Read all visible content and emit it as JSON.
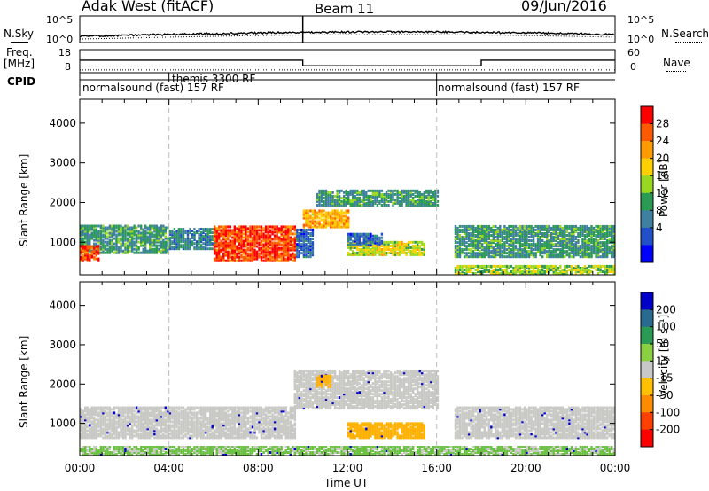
{
  "header": {
    "title": "Adak West (fitACF)",
    "beam": "Beam 11",
    "date": "09/Jun/2016"
  },
  "side_labels": {
    "nsky": "N.Sky",
    "nsearch": "N.Search",
    "freq_line1": "Freq.",
    "freq_line2": "[MHz]",
    "nave": "Nave",
    "cpid": "CPID"
  },
  "noise_panel": {
    "left_ticks": [
      "10^5",
      "10^0"
    ],
    "right_ticks": [
      "10^5",
      "10^0"
    ]
  },
  "freq_panel": {
    "left_ticks": [
      "18",
      "8"
    ],
    "right_ticks": [
      "60",
      "0"
    ]
  },
  "cpid_panel": {
    "segments": [
      {
        "label": "normalsound (fast) 157 RF",
        "start_hour": 0,
        "end_hour": 4
      },
      {
        "label": "themis 3300 RF",
        "start_hour": 4,
        "end_hour": 16
      },
      {
        "label": "normalsound (fast) 157 RF",
        "start_hour": 16,
        "end_hour": 24
      }
    ]
  },
  "power_panel": {
    "ylabel": "Slant Range [km]",
    "colorbar_label": "Power [dB]",
    "colorbar_ticks": [
      "28",
      "24",
      "20",
      "16",
      "12",
      "8",
      "4"
    ],
    "colorbar_colors": [
      "#ff0000",
      "#ff5a00",
      "#ff9a00",
      "#ffd000",
      "#9ad820",
      "#2a9a55",
      "#3f7fa0",
      "#2250c8",
      "#0000ff"
    ]
  },
  "velocity_panel": {
    "ylabel": "Slant Range [km]",
    "colorbar_label": "Velocity [m s⁻¹]",
    "colorbar_ticks": [
      "200",
      "100",
      "50",
      "15",
      "-15",
      "-50",
      "-100",
      "-200"
    ],
    "colorbar_colors": [
      "#0000c8",
      "#2a6a90",
      "#2a9a55",
      "#8ad040",
      "#c8c8c8",
      "#ffc000",
      "#ff8c00",
      "#ff4000",
      "#ff0000"
    ]
  },
  "x_axis": {
    "label": "Time UT",
    "ticks": [
      "00:00",
      "04:00",
      "08:00",
      "12:00",
      "16:00",
      "20:00",
      "00:00"
    ]
  },
  "chart_data": {
    "type": "heatmap",
    "x_range_hours": [
      0,
      24
    ],
    "y_range_km": [
      180,
      4600
    ],
    "y_ticks": [
      1000,
      2000,
      3000,
      4000
    ],
    "x_ticks": [
      "00:00",
      "04:00",
      "08:00",
      "12:00",
      "16:00",
      "20:00",
      "00:00"
    ],
    "dashed_time_lines_hours": [
      4,
      16
    ],
    "freq_mhz_steps": [
      {
        "start": 0,
        "end": 4,
        "value": 13.4
      },
      {
        "start": 4,
        "end": 10,
        "value": 13.4
      },
      {
        "start": 10,
        "end": 18,
        "value": 11.0
      },
      {
        "start": 18,
        "end": 24,
        "value": 13.4
      }
    ],
    "power_regions": [
      {
        "t0": 0.0,
        "t1": 4.0,
        "r0": 700,
        "r1": 1400,
        "level_db": 12
      },
      {
        "t0": 0.0,
        "t1": 0.8,
        "r0": 500,
        "r1": 900,
        "level_db": 28
      },
      {
        "t0": 4.0,
        "t1": 6.0,
        "r0": 800,
        "r1": 1300,
        "level_db": 10
      },
      {
        "t0": 6.0,
        "t1": 9.6,
        "r0": 500,
        "r1": 1400,
        "level_db": 28
      },
      {
        "t0": 9.7,
        "t1": 10.4,
        "r0": 600,
        "r1": 1300,
        "level_db": 8
      },
      {
        "t0": 10.0,
        "t1": 12.0,
        "r0": 1350,
        "r1": 1800,
        "level_db": 22
      },
      {
        "t0": 10.6,
        "t1": 16.0,
        "r0": 1900,
        "r1": 2300,
        "level_db": 12
      },
      {
        "t0": 12.0,
        "t1": 15.4,
        "r0": 650,
        "r1": 1000,
        "level_db": 18
      },
      {
        "t0": 12.0,
        "t1": 13.5,
        "r0": 900,
        "r1": 1200,
        "level_db": 8
      },
      {
        "t0": 16.8,
        "t1": 24.0,
        "r0": 600,
        "r1": 1400,
        "level_db": 12
      },
      {
        "t0": 16.8,
        "t1": 24.0,
        "r0": 180,
        "r1": 400,
        "level_db": 16
      }
    ],
    "velocity_regions": [
      {
        "t0": 0.0,
        "t1": 9.6,
        "r0": 600,
        "r1": 1400,
        "velocity": 0
      },
      {
        "t0": 9.6,
        "t1": 16.0,
        "r0": 1350,
        "r1": 2300,
        "velocity": 0
      },
      {
        "t0": 10.6,
        "t1": 11.2,
        "r0": 1900,
        "r1": 2200,
        "velocity": -50
      },
      {
        "t0": 12.0,
        "t1": 15.4,
        "r0": 600,
        "r1": 1000,
        "velocity": -50
      },
      {
        "t0": 16.8,
        "t1": 24.0,
        "r0": 600,
        "r1": 1400,
        "velocity": 0
      },
      {
        "t0": 0.0,
        "t1": 24.0,
        "r0": 180,
        "r1": 400,
        "velocity": 30
      }
    ]
  }
}
